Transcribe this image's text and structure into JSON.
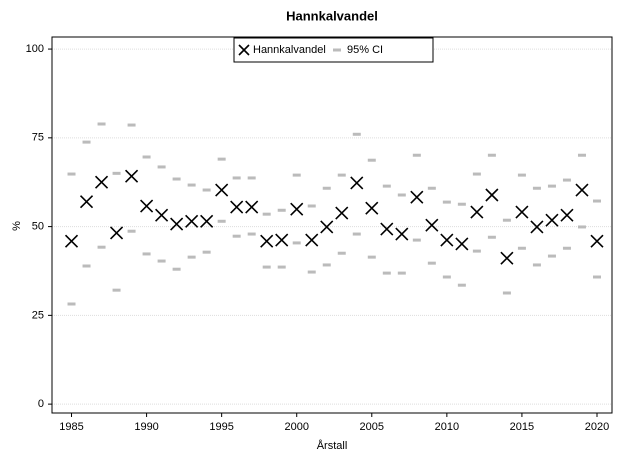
{
  "chart_data": {
    "type": "scatter-ci",
    "title": "Hannkalvandel",
    "x_label": "Årstall",
    "y_label": "%",
    "x": [
      1985,
      1986,
      1987,
      1988,
      1989,
      1990,
      1991,
      1992,
      1993,
      1994,
      1995,
      1996,
      1997,
      1998,
      1999,
      2000,
      2001,
      2002,
      2003,
      2004,
      2005,
      2006,
      2007,
      2008,
      2009,
      2010,
      2011,
      2012,
      2013,
      2014,
      2015,
      2016,
      2017,
      2018,
      2019,
      2020
    ],
    "series": [
      {
        "name": "Hannkalvandel",
        "color": "#000000",
        "values": [
          45.9,
          57,
          62.5,
          48.2,
          64.2,
          55.8,
          53.2,
          50.7,
          51.5,
          51.5,
          60.3,
          55.5,
          55.5,
          45.9,
          46.2,
          54.9,
          46.2,
          49.9,
          53.8,
          62.3,
          55.2,
          49.3,
          47.9,
          58.3,
          50.4,
          46.2,
          45.1,
          54.1,
          58.9,
          41.1,
          54.1,
          49.9,
          51.8,
          53.2,
          60.3,
          45.9
        ]
      },
      {
        "name": "95% CI",
        "color": "#bbbbbb",
        "lower": [
          28.2,
          38.9,
          44.2,
          32.1,
          48.7,
          42.3,
          40.3,
          38,
          41.4,
          42.8,
          51.5,
          47.3,
          47.9,
          38.6,
          38.6,
          45.4,
          37.2,
          39.2,
          42.5,
          47.9,
          41.4,
          36.9,
          36.9,
          46.2,
          39.7,
          35.8,
          33.5,
          43.1,
          47,
          31.3,
          43.9,
          39.2,
          41.7,
          43.9,
          49.9,
          35.8
        ],
        "upper": [
          64.8,
          73.8,
          78.9,
          65,
          78.6,
          69.6,
          66.8,
          63.4,
          61.7,
          60.3,
          69,
          63.7,
          63.7,
          53.5,
          54.6,
          64.5,
          55.8,
          60.8,
          64.5,
          76,
          68.7,
          61.4,
          58.9,
          70.1,
          60.8,
          56.9,
          56.3,
          64.8,
          70.1,
          51.8,
          64.5,
          60.8,
          61.4,
          63.1,
          70.1,
          57.2
        ]
      }
    ],
    "xlim": [
      1983.7,
      2021
    ],
    "ylim": [
      -2.5,
      103.4
    ],
    "xticks": [
      1985,
      1990,
      1995,
      2000,
      2005,
      2010,
      2015,
      2020
    ],
    "yticks": [
      0,
      25,
      50,
      75,
      100
    ],
    "grid": true,
    "legend": "top"
  }
}
